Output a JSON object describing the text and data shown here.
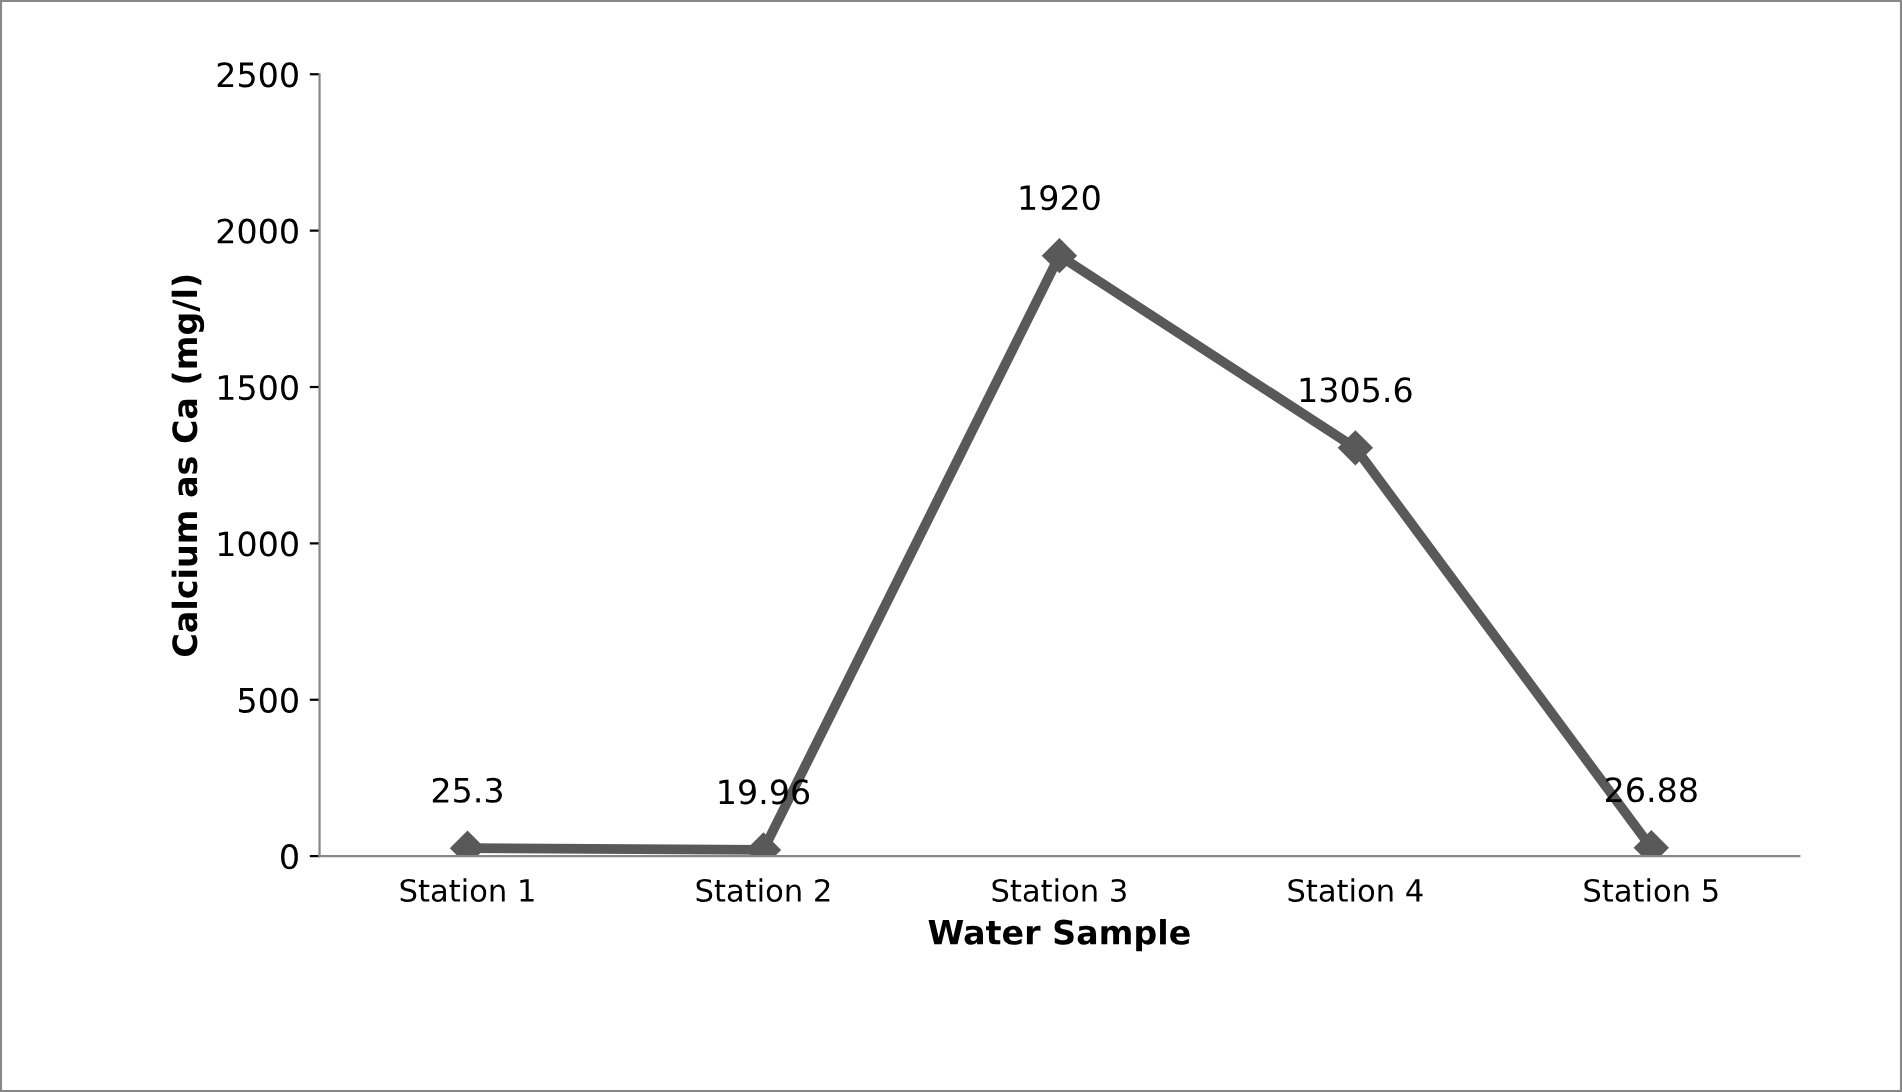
{
  "chart_data": {
    "type": "line",
    "xlabel": "Water Sample",
    "ylabel": "Calcium as Ca (mg/l)",
    "categories": [
      "Station 1",
      "Station 2",
      "Station 3",
      "Station 4",
      "Station 5"
    ],
    "series": [
      {
        "color": "#595959",
        "values": [
          25.3,
          19.96,
          1920,
          1305.6,
          26.88
        ]
      }
    ],
    "ylim": [
      0,
      2500
    ],
    "yticks": [
      0,
      500,
      1000,
      1500,
      2000,
      2500
    ],
    "marker": "diamond",
    "line_style": "solid",
    "data_labels": true,
    "grid": false,
    "legend": false
  }
}
